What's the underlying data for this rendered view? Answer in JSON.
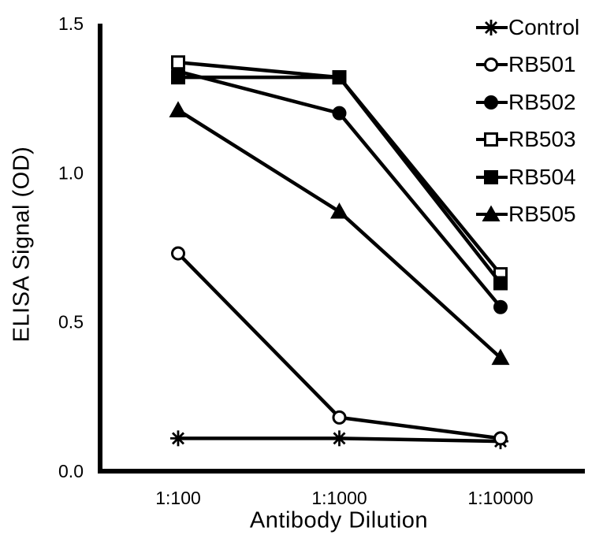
{
  "figure": {
    "background": "#ffffff",
    "line_color": "#000000"
  },
  "chart_data": {
    "type": "line",
    "title": "",
    "xlabel": "Antibody Dilution",
    "ylabel": "ELISA Signal (OD)",
    "categories": [
      "1:100",
      "1:1000",
      "1:10000"
    ],
    "x_tick_labels": [
      "1:100",
      "1:1000",
      "1:10000"
    ],
    "y_ticks": [
      0,
      0.5,
      1.0,
      1.5
    ],
    "y_tick_labels": [
      "0.0",
      "0.5",
      "1.0",
      "1.5"
    ],
    "ylim": [
      0,
      1.5
    ],
    "grid": false,
    "legend_position": "top-right",
    "series": [
      {
        "name": "Control",
        "marker": "asterisk",
        "fill": "open",
        "values": [
          0.11,
          0.11,
          0.1
        ]
      },
      {
        "name": "RB501",
        "marker": "circle",
        "fill": "open",
        "values": [
          0.73,
          0.18,
          0.11
        ]
      },
      {
        "name": "RB502",
        "marker": "circle",
        "fill": "solid",
        "values": [
          1.34,
          1.2,
          0.55
        ]
      },
      {
        "name": "RB503",
        "marker": "square",
        "fill": "open",
        "values": [
          1.37,
          1.32,
          0.66
        ]
      },
      {
        "name": "RB504",
        "marker": "square",
        "fill": "solid",
        "values": [
          1.32,
          1.32,
          0.63
        ]
      },
      {
        "name": "RB505",
        "marker": "triangle",
        "fill": "solid",
        "values": [
          1.21,
          0.87,
          0.38
        ]
      }
    ]
  }
}
